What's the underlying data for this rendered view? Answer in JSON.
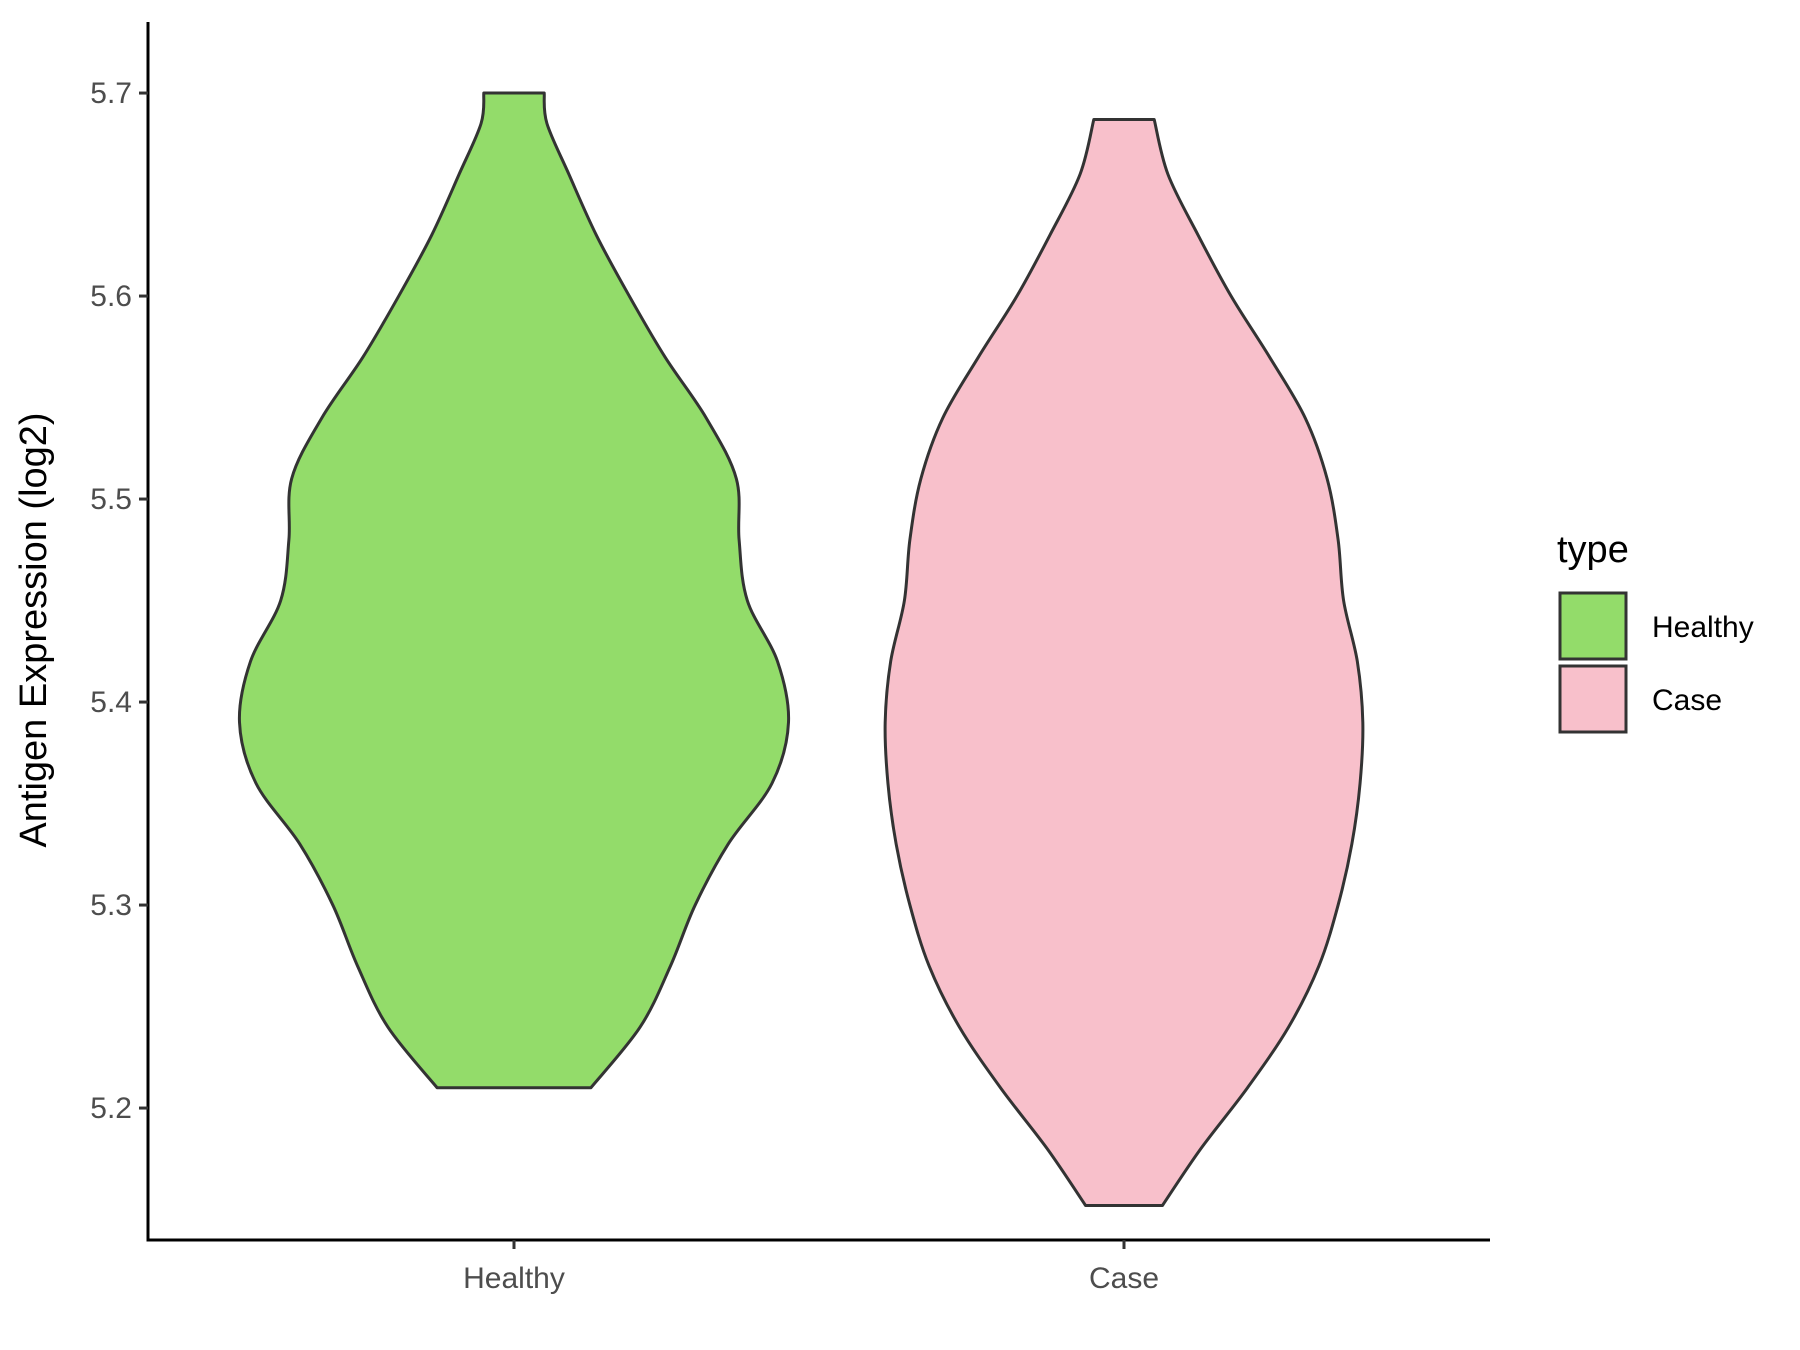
{
  "chart_data": {
    "type": "violin",
    "title": "",
    "xlabel": "",
    "ylabel": "Antigen Expression (log2)",
    "categories": [
      "Healthy",
      "Case"
    ],
    "ylim": [
      5.135,
      5.735
    ],
    "yticks": [
      "5.2",
      "5.3",
      "5.4",
      "5.5",
      "5.6",
      "5.7"
    ],
    "grid": false,
    "series": [
      {
        "name": "Healthy",
        "color": "#93DC6A",
        "min": 5.21,
        "max": 5.7,
        "density_profile": [
          [
            5.21,
            0.28
          ],
          [
            5.24,
            0.46
          ],
          [
            5.27,
            0.57
          ],
          [
            5.3,
            0.66
          ],
          [
            5.33,
            0.78
          ],
          [
            5.36,
            0.94
          ],
          [
            5.39,
            1.0
          ],
          [
            5.42,
            0.96
          ],
          [
            5.45,
            0.85
          ],
          [
            5.48,
            0.82
          ],
          [
            5.51,
            0.81
          ],
          [
            5.54,
            0.7
          ],
          [
            5.57,
            0.55
          ],
          [
            5.6,
            0.42
          ],
          [
            5.63,
            0.3
          ],
          [
            5.66,
            0.2
          ],
          [
            5.685,
            0.12
          ],
          [
            5.7,
            0.11
          ]
        ]
      },
      {
        "name": "Case",
        "color": "#F8C0CB",
        "min": 5.152,
        "max": 5.687,
        "density_profile": [
          [
            5.152,
            0.14
          ],
          [
            5.18,
            0.28
          ],
          [
            5.21,
            0.45
          ],
          [
            5.24,
            0.6
          ],
          [
            5.27,
            0.71
          ],
          [
            5.3,
            0.78
          ],
          [
            5.33,
            0.83
          ],
          [
            5.36,
            0.86
          ],
          [
            5.39,
            0.87
          ],
          [
            5.42,
            0.85
          ],
          [
            5.45,
            0.8
          ],
          [
            5.48,
            0.78
          ],
          [
            5.51,
            0.74
          ],
          [
            5.54,
            0.66
          ],
          [
            5.57,
            0.53
          ],
          [
            5.6,
            0.39
          ],
          [
            5.63,
            0.27
          ],
          [
            5.66,
            0.16
          ],
          [
            5.687,
            0.11
          ]
        ]
      }
    ],
    "legend": {
      "title": "type",
      "position": "right",
      "entries": [
        {
          "label": "Healthy",
          "color": "#93DC6A"
        },
        {
          "label": "Case",
          "color": "#F8C0CB"
        }
      ]
    },
    "outline_color": "#333333"
  }
}
